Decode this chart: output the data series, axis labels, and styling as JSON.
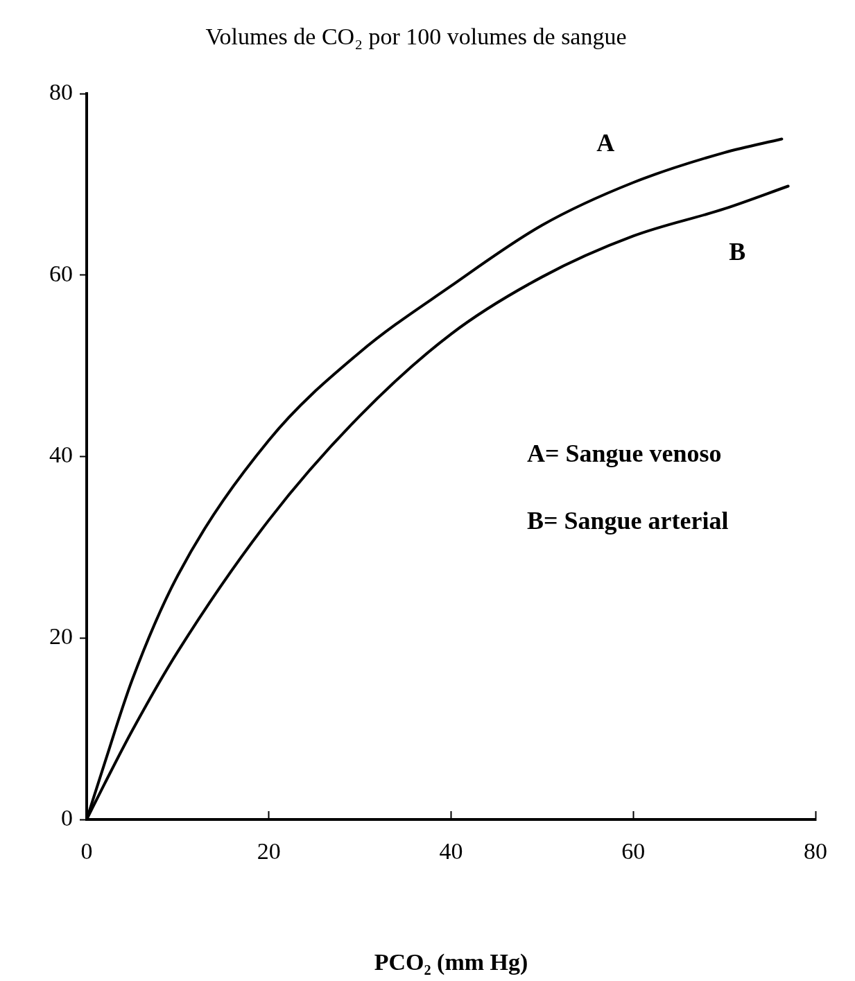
{
  "chart_data": {
    "type": "line",
    "title": "Volumes de CO₂ por 100 volumes de sangue",
    "xlabel": "PCO₂ (mm Hg)",
    "xlim": [
      0,
      80
    ],
    "xticks": [
      0,
      20,
      40,
      60,
      80
    ],
    "ylim": [
      0,
      80
    ],
    "yticks": [
      0,
      20,
      40,
      60,
      80
    ],
    "grid": false,
    "legend": false,
    "marker": "none",
    "line_style": "solid",
    "series": [
      {
        "name": "A",
        "color": "#000000",
        "x": [
          0,
          2,
          5,
          10,
          20,
          30,
          40,
          50,
          60,
          70,
          76.3
        ],
        "values": [
          0,
          6.3,
          15.4,
          26.9,
          41.8,
          51.5,
          58.8,
          65.5,
          70.2,
          73.5,
          75
        ]
      },
      {
        "name": "B",
        "color": "#000000",
        "x": [
          0,
          2,
          5,
          10,
          20,
          30,
          40,
          50,
          60,
          70,
          77
        ],
        "values": [
          0,
          4,
          9.8,
          18.5,
          33,
          44.5,
          53.5,
          59.8,
          64.3,
          67.3,
          69.8
        ]
      }
    ],
    "annotations": [
      "A= Sangue venoso",
      "B= Sangue arterial"
    ]
  }
}
